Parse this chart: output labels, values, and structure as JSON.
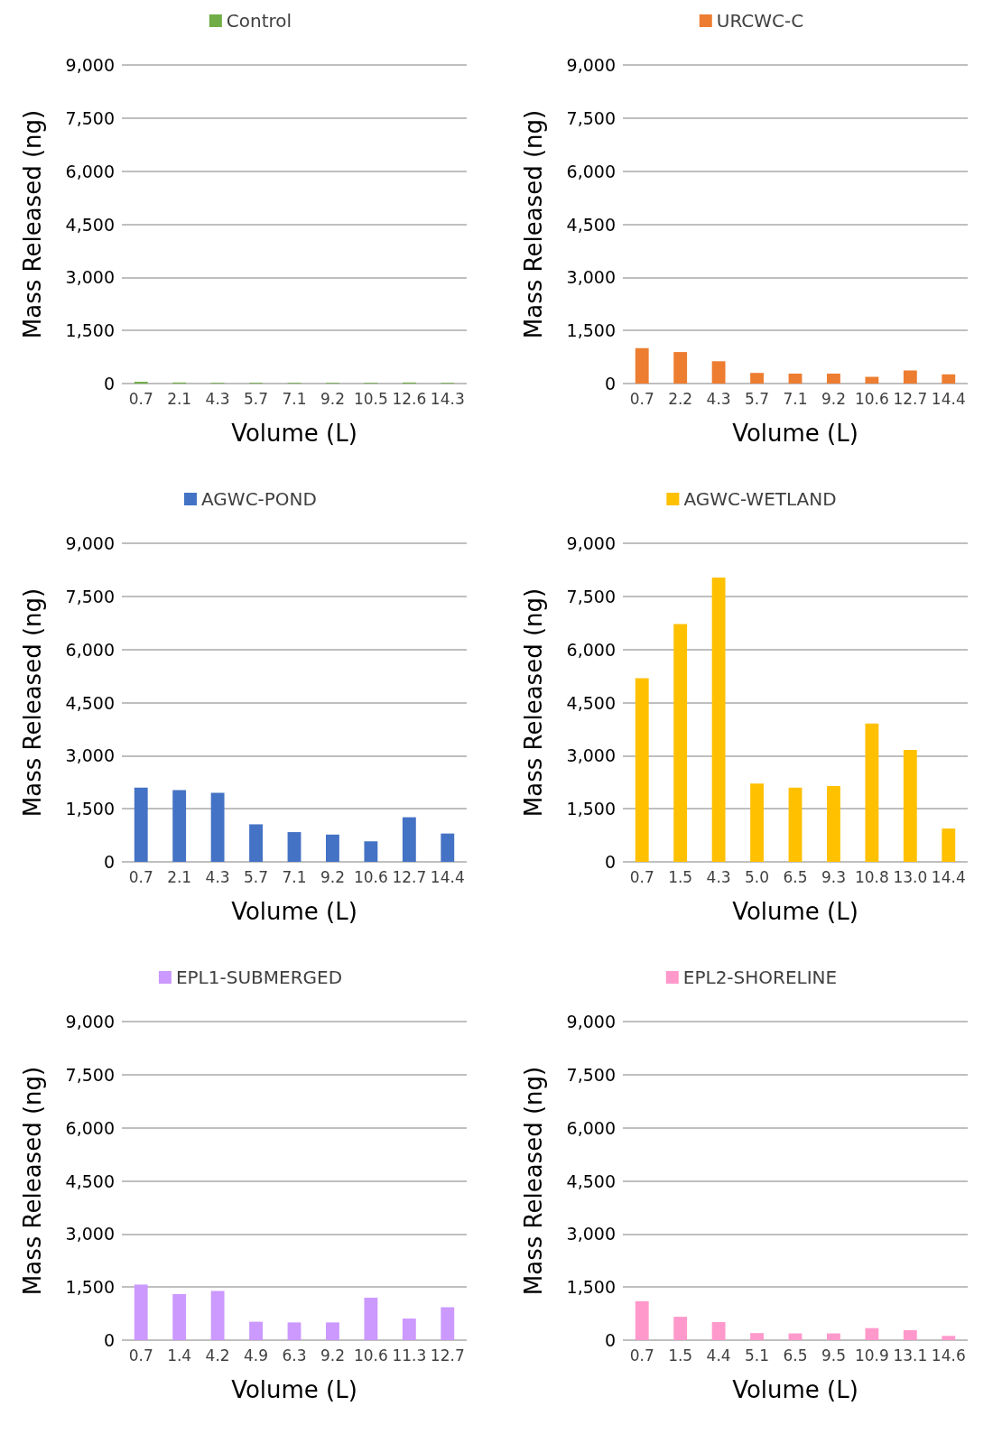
{
  "chart_data": [
    {
      "type": "bar",
      "xlabel": "Volume (L)",
      "ylabel": "Mass Released (ng)",
      "categories": [
        "0.7",
        "2.1",
        "4.3",
        "5.7",
        "7.1",
        "9.2",
        "10.5",
        "12.6",
        "14.3"
      ],
      "series": [
        {
          "name": "Control",
          "color": "#70ad47",
          "values": [
            50,
            30,
            20,
            20,
            20,
            20,
            20,
            30,
            20
          ]
        }
      ],
      "ylim": [
        0,
        9000
      ],
      "yticks": [
        {
          "value": 0,
          "label": "0"
        },
        {
          "value": 1500,
          "label": "1,500"
        },
        {
          "value": 3000,
          "label": "3,000"
        },
        {
          "value": 4500,
          "label": "4,500"
        },
        {
          "value": 6000,
          "label": "6,000"
        },
        {
          "value": 7500,
          "label": "7,500"
        },
        {
          "value": 9000,
          "label": "9,000"
        }
      ],
      "grid": "y",
      "legend": "top"
    },
    {
      "type": "bar",
      "xlabel": "Volume (L)",
      "ylabel": "Mass Released (ng)",
      "categories": [
        "0.7",
        "2.2",
        "4.3",
        "5.7",
        "7.1",
        "9.2",
        "10.6",
        "12.7",
        "14.4"
      ],
      "series": [
        {
          "name": "URCWC-C",
          "color": "#ed7d31",
          "values": [
            1000,
            890,
            630,
            300,
            280,
            280,
            190,
            370,
            260
          ]
        }
      ],
      "ylim": [
        0,
        9000
      ],
      "yticks": [
        {
          "value": 0,
          "label": "0"
        },
        {
          "value": 1500,
          "label": "1,500"
        },
        {
          "value": 3000,
          "label": "3,000"
        },
        {
          "value": 4500,
          "label": "4,500"
        },
        {
          "value": 6000,
          "label": "6,000"
        },
        {
          "value": 7500,
          "label": "7,500"
        },
        {
          "value": 9000,
          "label": "9,000"
        }
      ],
      "grid": "y",
      "legend": "top"
    },
    {
      "type": "bar",
      "xlabel": "Volume (L)",
      "ylabel": "Mass Released (ng)",
      "categories": [
        "0.7",
        "2.1",
        "4.3",
        "5.7",
        "7.1",
        "9.2",
        "10.6",
        "12.7",
        "14.4"
      ],
      "series": [
        {
          "name": "AGWC-POND",
          "color": "#4472c4",
          "values": [
            2100,
            2030,
            1950,
            1060,
            840,
            770,
            580,
            1260,
            800
          ]
        }
      ],
      "ylim": [
        0,
        9000
      ],
      "yticks": [
        {
          "value": 0,
          "label": "0"
        },
        {
          "value": 1500,
          "label": "1,500"
        },
        {
          "value": 3000,
          "label": "3,000"
        },
        {
          "value": 4500,
          "label": "4,500"
        },
        {
          "value": 6000,
          "label": "6,000"
        },
        {
          "value": 7500,
          "label": "7,500"
        },
        {
          "value": 9000,
          "label": "9,000"
        }
      ],
      "grid": "y",
      "legend": "top"
    },
    {
      "type": "bar",
      "xlabel": "Volume (L)",
      "ylabel": "Mass Released (ng)",
      "categories": [
        "0.7",
        "1.5",
        "4.3",
        "5.0",
        "6.5",
        "9.3",
        "10.8",
        "13.0",
        "14.4"
      ],
      "series": [
        {
          "name": "AGWC-WETLAND",
          "color": "#ffc000",
          "values": [
            5190,
            6720,
            8030,
            2210,
            2100,
            2140,
            3910,
            3160,
            940
          ]
        }
      ],
      "ylim": [
        0,
        9000
      ],
      "yticks": [
        {
          "value": 0,
          "label": "0"
        },
        {
          "value": 1500,
          "label": "1,500"
        },
        {
          "value": 3000,
          "label": "3,000"
        },
        {
          "value": 4500,
          "label": "4,500"
        },
        {
          "value": 6000,
          "label": "6,000"
        },
        {
          "value": 7500,
          "label": "7,500"
        },
        {
          "value": 9000,
          "label": "9,000"
        }
      ],
      "grid": "y",
      "legend": "top"
    },
    {
      "type": "bar",
      "xlabel": "Volume (L)",
      "ylabel": "Mass Released (ng)",
      "categories": [
        "0.7",
        "1.4",
        "4.2",
        "4.9",
        "6.3",
        "9.2",
        "10.6",
        "11.3",
        "12.7"
      ],
      "series": [
        {
          "name": "EPL1-SUBMERGED",
          "color": "#cc99ff",
          "values": [
            1570,
            1300,
            1390,
            520,
            500,
            500,
            1200,
            610,
            930
          ]
        }
      ],
      "ylim": [
        0,
        9000
      ],
      "yticks": [
        {
          "value": 0,
          "label": "0"
        },
        {
          "value": 1500,
          "label": "1,500"
        },
        {
          "value": 3000,
          "label": "3,000"
        },
        {
          "value": 4500,
          "label": "4,500"
        },
        {
          "value": 6000,
          "label": "6,000"
        },
        {
          "value": 7500,
          "label": "7,500"
        },
        {
          "value": 9000,
          "label": "9,000"
        }
      ],
      "grid": "y",
      "legend": "top"
    },
    {
      "type": "bar",
      "xlabel": "Volume (L)",
      "ylabel": "Mass Released (ng)",
      "categories": [
        "0.7",
        "1.5",
        "4.4",
        "5.1",
        "6.5",
        "9.5",
        "10.9",
        "13.1",
        "14.6"
      ],
      "series": [
        {
          "name": "EPL2-SHORELINE",
          "color": "#ff99cc",
          "values": [
            1100,
            660,
            510,
            200,
            190,
            190,
            340,
            280,
            120
          ]
        }
      ],
      "ylim": [
        0,
        9000
      ],
      "yticks": [
        {
          "value": 0,
          "label": "0"
        },
        {
          "value": 1500,
          "label": "1,500"
        },
        {
          "value": 3000,
          "label": "3,000"
        },
        {
          "value": 4500,
          "label": "4,500"
        },
        {
          "value": 6000,
          "label": "6,000"
        },
        {
          "value": 7500,
          "label": "7,500"
        },
        {
          "value": 9000,
          "label": "9,000"
        }
      ],
      "grid": "y",
      "legend": "top"
    }
  ]
}
